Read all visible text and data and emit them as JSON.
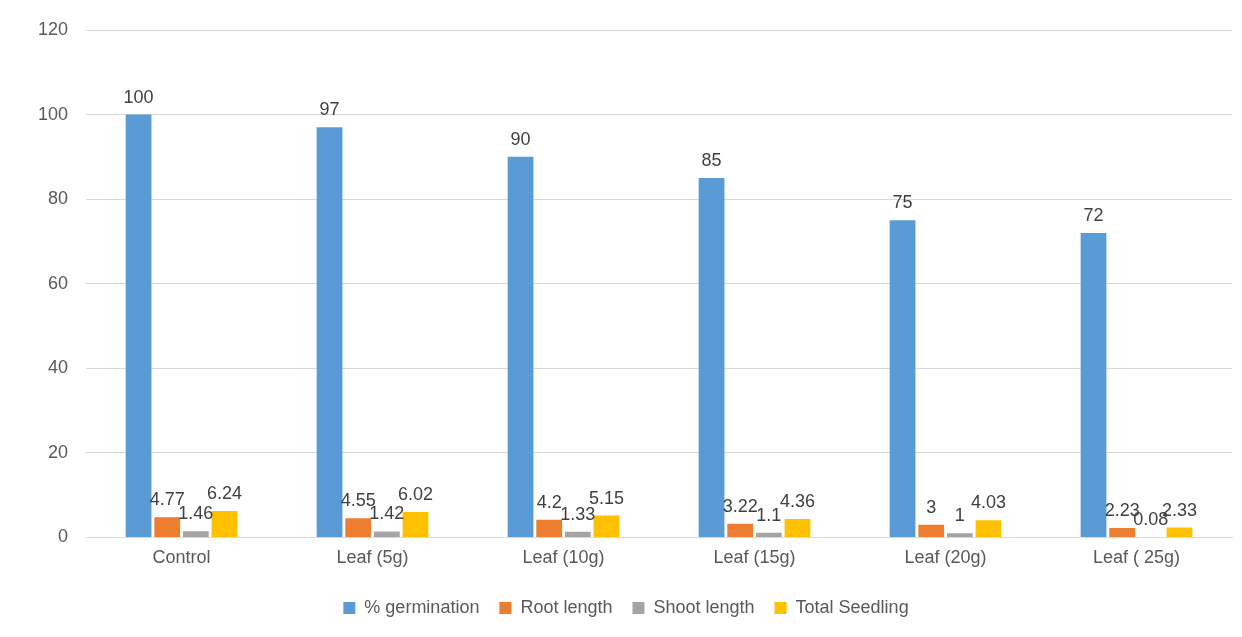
{
  "chart_data": {
    "type": "bar",
    "categories": [
      "Control",
      "Leaf (5g)",
      "Leaf (10g)",
      "Leaf (15g)",
      "Leaf (20g)",
      "Leaf ( 25g)"
    ],
    "series": [
      {
        "name": "% germination",
        "color": "#5b9bd5",
        "values": [
          100,
          97,
          90,
          85,
          75,
          72
        ]
      },
      {
        "name": "Root length",
        "color": "#ed7d31",
        "values": [
          4.77,
          4.55,
          4.2,
          3.22,
          3,
          2.23
        ]
      },
      {
        "name": "Shoot length",
        "color": "#a5a5a5",
        "values": [
          1.46,
          1.42,
          1.33,
          1.1,
          1,
          0.08
        ]
      },
      {
        "name": "Total Seedling",
        "color": "#ffc000",
        "values": [
          6.24,
          6.02,
          5.15,
          4.36,
          4.03,
          2.33
        ]
      }
    ],
    "ylim": [
      0,
      120
    ],
    "yticks": [
      0,
      20,
      40,
      60,
      80,
      100,
      120
    ],
    "grid": "y",
    "legend": "bottom",
    "data_labels": true
  }
}
